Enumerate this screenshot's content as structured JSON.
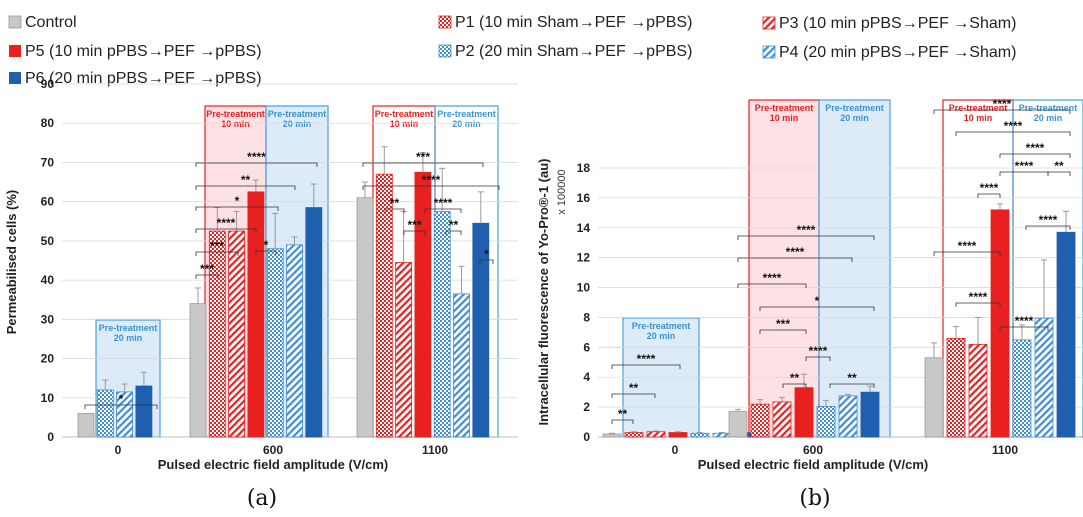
{
  "legend": [
    {
      "key": "control",
      "label": "Control"
    },
    {
      "key": "p5",
      "label": "P5 (10 min pPBS→PEF →pPBS)"
    },
    {
      "key": "p6",
      "label": "P6 (20 min pPBS→PEF →pPBS)"
    },
    {
      "key": "p1",
      "label": "P1 (10 min Sham→PEF →pPBS)"
    },
    {
      "key": "p2",
      "label": "P2 (20 min Sham→PEF →pPBS)"
    },
    {
      "key": "p3",
      "label": "P3 (10 min pPBS→PEF →Sham)"
    },
    {
      "key": "p4",
      "label": "P4 (20 min pPBS→PEF →Sham)"
    }
  ],
  "colors": {
    "control": "#c8c8c8",
    "red": "#e8201f",
    "blue_dark": "#1f5fb0",
    "blue_light": "#3f8ed6",
    "pink_box": "#fde1e4",
    "blue_box": "#ddeaf7",
    "red_border": "#e8201f",
    "blue_border": "#4aa0d8"
  },
  "panels": {
    "a": "(a)",
    "b": "(b)"
  },
  "pretreat": {
    "ten": [
      "Pre-treatment",
      "10 min"
    ],
    "twenty": [
      "Pre-treatment",
      "20 min"
    ]
  },
  "chart_data": [
    {
      "type": "bar",
      "panel": "(a)",
      "xlabel": "Pulsed electric field amplitude (V/cm)",
      "ylabel": "Permeabilised cells (%)",
      "ylim": [
        0,
        90
      ],
      "yticks": [
        0,
        10,
        20,
        30,
        40,
        50,
        60,
        70,
        80,
        90
      ],
      "categories": [
        "0",
        "600",
        "1100"
      ],
      "series": [
        {
          "name": "Control",
          "values": [
            6,
            34,
            61
          ],
          "errors": [
            0,
            4,
            4
          ]
        },
        {
          "name": "P1",
          "values": [
            null,
            52.5,
            67
          ],
          "errors": [
            null,
            6,
            7
          ]
        },
        {
          "name": "P3",
          "values": [
            null,
            52.5,
            44.5
          ],
          "errors": [
            null,
            5,
            13
          ]
        },
        {
          "name": "P5",
          "values": [
            null,
            62.5,
            67.5
          ],
          "errors": [
            null,
            3,
            5
          ]
        },
        {
          "name": "P2",
          "values": [
            12,
            48,
            57.5
          ],
          "errors": [
            2.5,
            9,
            11
          ]
        },
        {
          "name": "P4",
          "values": [
            11.5,
            49,
            36.5
          ],
          "errors": [
            2,
            2,
            7
          ]
        },
        {
          "name": "P6",
          "values": [
            13,
            58.5,
            54.5
          ],
          "errors": [
            3.5,
            6,
            8
          ]
        }
      ],
      "significance": [
        {
          "group": "0",
          "label": "*"
        },
        {
          "group": "600",
          "labels": [
            "****",
            "**",
            "*",
            "****",
            "***",
            "***",
            "*"
          ]
        },
        {
          "group": "1100",
          "labels": [
            "***",
            "****",
            "**",
            "***",
            "****",
            "**",
            "*"
          ]
        }
      ]
    },
    {
      "type": "bar",
      "panel": "(b)",
      "xlabel": "Pulsed electric field amplitude (V/cm)",
      "ylabel": "Intracellular fluorescence of Yo-Pro®-1 (au)",
      "yscale_label": "x 100000",
      "ylim": [
        0,
        18
      ],
      "yticks": [
        0,
        2,
        4,
        6,
        8,
        10,
        12,
        14,
        16,
        18
      ],
      "categories": [
        "0",
        "600",
        "1100"
      ],
      "series": [
        {
          "name": "Control",
          "values": [
            0.2,
            1.7,
            5.3
          ],
          "errors": [
            0.05,
            0.15,
            1.0
          ]
        },
        {
          "name": "P1",
          "values": [
            0.3,
            2.2,
            6.6
          ],
          "errors": [
            0.05,
            0.3,
            0.8
          ]
        },
        {
          "name": "P3",
          "values": [
            0.35,
            2.35,
            6.2
          ],
          "errors": [
            0.05,
            0.3,
            1.8
          ]
        },
        {
          "name": "P5",
          "values": [
            0.3,
            3.3,
            15.2
          ],
          "errors": [
            0.05,
            0.9,
            0.4
          ]
        },
        {
          "name": "P2",
          "values": [
            0.25,
            2.05,
            6.5
          ],
          "errors": [
            0.05,
            0.4,
            1.0
          ]
        },
        {
          "name": "P4",
          "values": [
            0.25,
            2.75,
            7.95
          ],
          "errors": [
            0.05,
            0.1,
            3.9
          ]
        },
        {
          "name": "P6",
          "values": [
            0.3,
            3.0,
            13.7
          ],
          "errors": [
            0.05,
            0.4,
            1.4
          ]
        }
      ],
      "significance": [
        {
          "group": "0",
          "labels": [
            "****",
            "**",
            "**"
          ]
        },
        {
          "group": "600",
          "labels": [
            "****",
            "****",
            "****",
            "*",
            "***",
            "****",
            "**",
            "**"
          ]
        },
        {
          "group": "1100",
          "labels": [
            "****",
            "****",
            "****",
            "****",
            "**",
            "****",
            "****",
            "****",
            "****"
          ]
        }
      ]
    }
  ]
}
